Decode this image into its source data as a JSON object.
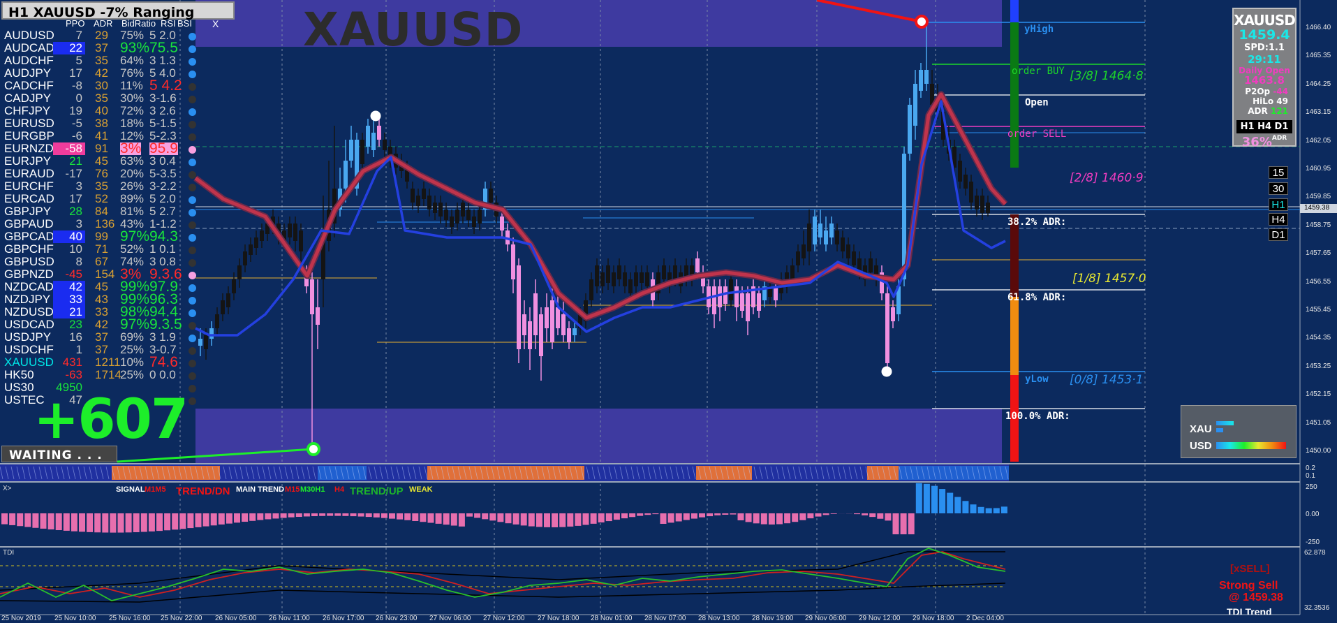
{
  "window": {
    "title": "H1 XAUUSD  -7% Ranging",
    "symbol_watermark": "XAUUSD"
  },
  "pairs_table": {
    "headers": [
      "PPO",
      "ADR",
      "BidRatio",
      "RSI",
      "BSI"
    ],
    "close_label": "X",
    "rows": [
      {
        "name": "AUDUSD",
        "ppo": "7",
        "adr": "29",
        "ratio": "75%",
        "rsi": "5 2.0",
        "dot": "#2a8ff0"
      },
      {
        "name": "AUDCAD",
        "ppo": "22",
        "adr": "37",
        "ratio": "93%",
        "rsi": "75.5",
        "dot": "#2a8ff0",
        "ppo_bg": "#1a2cf0",
        "ratio_color": "#19e43c",
        "rsi_color": "#19e43c"
      },
      {
        "name": "AUDCHF",
        "ppo": "5",
        "adr": "35",
        "ratio": "64%",
        "rsi": "3 1.3",
        "dot": "#2a8ff0"
      },
      {
        "name": "AUDJPY",
        "ppo": "17",
        "adr": "42",
        "ratio": "76%",
        "rsi": "5 4.0",
        "dot": "#2a8ff0"
      },
      {
        "name": "CADCHF",
        "ppo": "-8",
        "adr": "30",
        "ratio": "11%",
        "rsi": "5 4.2",
        "dot": "#333",
        "rsi_color": "#ff2a2a"
      },
      {
        "name": "CADJPY",
        "ppo": "0",
        "adr": "35",
        "ratio": "30%",
        "rsi": "3-1.6",
        "dot": "#333"
      },
      {
        "name": "CHFJPY",
        "ppo": "19",
        "adr": "40",
        "ratio": "72%",
        "rsi": "3 2.6",
        "dot": "#2a8ff0"
      },
      {
        "name": "EURUSD",
        "ppo": "-5",
        "adr": "38",
        "ratio": "18%",
        "rsi": "5-1.5",
        "dot": "#333"
      },
      {
        "name": "EURGBP",
        "ppo": "-6",
        "adr": "41",
        "ratio": "12%",
        "rsi": "5-2.3",
        "dot": "#333"
      },
      {
        "name": "EURNZD",
        "ppo": "-58",
        "adr": "91",
        "ratio": "3%",
        "rsi": "95.9",
        "dot": "#f7a0e0",
        "ppo_bg": "#f03c9c",
        "ratio_color": "#ff2a2a",
        "rsi_color": "#ff2a2a",
        "ratio_bg": "#f7a0e0",
        "rsi_bg": "#f7a0e0"
      },
      {
        "name": "EURJPY",
        "ppo": "21",
        "adr": "45",
        "ratio": "63%",
        "rsi": "3 0.4",
        "dot": "#2a8ff0",
        "ppo_color": "#19e43c"
      },
      {
        "name": "EURAUD",
        "ppo": "-17",
        "adr": "76",
        "ratio": "20%",
        "rsi": "5-3.5",
        "dot": "#333"
      },
      {
        "name": "EURCHF",
        "ppo": "3",
        "adr": "35",
        "ratio": "26%",
        "rsi": "3-2.2",
        "dot": "#333"
      },
      {
        "name": "EURCAD",
        "ppo": "17",
        "adr": "52",
        "ratio": "89%",
        "rsi": "5 2.0",
        "dot": "#2a8ff0"
      },
      {
        "name": "GBPJPY",
        "ppo": "28",
        "adr": "84",
        "ratio": "81%",
        "rsi": "5 2.7",
        "dot": "#2a8ff0",
        "ppo_color": "#19e43c"
      },
      {
        "name": "GBPAUD",
        "ppo": "3",
        "adr": "136",
        "ratio": "43%",
        "rsi": "1-1.2",
        "dot": "#333"
      },
      {
        "name": "GBPCAD",
        "ppo": "40",
        "adr": "99",
        "ratio": "97%",
        "rsi": "94.3",
        "dot": "#2a8ff0",
        "ppo_bg": "#1a2cf0",
        "ratio_color": "#19e43c",
        "rsi_color": "#19e43c"
      },
      {
        "name": "GBPCHF",
        "ppo": "10",
        "adr": "71",
        "ratio": "52%",
        "rsi": "1 0.1",
        "dot": "#333"
      },
      {
        "name": "GBPUSD",
        "ppo": "8",
        "adr": "67",
        "ratio": "74%",
        "rsi": "3 0.8",
        "dot": "#333"
      },
      {
        "name": "GBPNZD",
        "ppo": "-45",
        "adr": "154",
        "ratio": "3%",
        "rsi": "9.3.6",
        "dot": "#f7a0e0",
        "ppo_color": "#ff2a2a",
        "ratio_color": "#ff2a2a",
        "rsi_color": "#ff2a2a"
      },
      {
        "name": "NZDCAD",
        "ppo": "42",
        "adr": "45",
        "ratio": "99%",
        "rsi": "97.9",
        "dot": "#2a8ff0",
        "ppo_bg": "#1a2cf0",
        "ratio_color": "#19e43c",
        "rsi_color": "#19e43c"
      },
      {
        "name": "NZDJPY",
        "ppo": "33",
        "adr": "43",
        "ratio": "99%",
        "rsi": "96.3",
        "dot": "#2a8ff0",
        "ppo_bg": "#1a2cf0",
        "ratio_color": "#19e43c",
        "rsi_color": "#19e43c"
      },
      {
        "name": "NZDUSD",
        "ppo": "21",
        "adr": "33",
        "ratio": "98%",
        "rsi": "94.4",
        "dot": "#2a8ff0",
        "ppo_bg": "#1a2cf0",
        "ratio_color": "#19e43c",
        "rsi_color": "#19e43c"
      },
      {
        "name": "USDCAD",
        "ppo": "23",
        "adr": "42",
        "ratio": "97%",
        "rsi": "9.3.5",
        "dot": "#333",
        "ppo_color": "#19e43c",
        "ratio_color": "#19e43c",
        "rsi_color": "#19e43c"
      },
      {
        "name": "USDJPY",
        "ppo": "16",
        "adr": "37",
        "ratio": "69%",
        "rsi": "3 1.9",
        "dot": "#2a8ff0"
      },
      {
        "name": "USDCHF",
        "ppo": "1",
        "adr": "37",
        "ratio": "25%",
        "rsi": "3-0.7",
        "dot": "#333"
      },
      {
        "name": "XAUUSD",
        "ppo": "431",
        "adr": "1211",
        "ratio": "10%",
        "rsi": "74.6",
        "dot": "#333",
        "name_color": "#00e6e6",
        "ppo_color": "#ff2a2a",
        "rsi_color": "#ff2a2a"
      },
      {
        "name": "HK50",
        "ppo": "-63",
        "adr": "1714",
        "ratio": "25%",
        "rsi": "0 0.0",
        "dot": "#333",
        "ppo_color": "#ff2a2a"
      },
      {
        "name": "US30",
        "ppo": "4950",
        "adr": "",
        "ratio": "",
        "rsi": "",
        "dot": "#333",
        "ppo_color": "#19e43c"
      },
      {
        "name": "USTEC",
        "ppo": "47",
        "adr": "",
        "ratio": "",
        "rsi": "",
        "dot": "#333"
      }
    ]
  },
  "profit": "+607",
  "status": "WAITING . . .",
  "levels": {
    "yhigh": "yHigh",
    "order_buy": "order BUY",
    "open": "Open",
    "order_sell": "order SELL",
    "adr_382": "38.2% ADR:",
    "adr_618": "61.8% ADR:",
    "ylow": "yLow",
    "adr_100": "100.0% ADR:",
    "murrey_38": "[3/8]  1464·8",
    "murrey_28": "[2/8]  1460·9",
    "murrey_18": "[1/8]  1457·0",
    "murrey_08": "[0/8]  1453·1"
  },
  "info_panel": {
    "symbol": "XAUUSD",
    "price": "1459.4",
    "spread": "SPD:1.1",
    "timer": "29:11",
    "daily_open_label": "Daily Open",
    "daily_open": "1463.8",
    "p2o_label": "P2Op",
    "p2o": "-44",
    "hilo_label": "HiLo",
    "hilo": "49",
    "adr_label": "ADR",
    "adr": "121",
    "tf_buttons": "H1 H4 D1",
    "percent": "36%",
    "percent_label": "ADR"
  },
  "timeframes": [
    "15",
    "30",
    "H1",
    "H4",
    "D1"
  ],
  "strength": {
    "xau": "XAU",
    "usd": "USD",
    "xau_level": 0.25,
    "usd_level": 1.0
  },
  "indicator1": {
    "label_x": "X>",
    "signal": "SIGNAL",
    "m1m5": "M1M5",
    "trend_dn": "TREND/DN",
    "main_trend": "MAIN TREND",
    "m15": "M15",
    "m30h1": "M30H1",
    "h4": "H4",
    "trend_up": "TREND/UP",
    "weak": "WEAK"
  },
  "indicator2": {
    "label": "TDI",
    "sell_label": "[xSELL]",
    "strong_sell": "Strong Sell",
    "at_price": "@ 1459.38",
    "tdi_trend": "TDI Trend"
  },
  "price_axis": {
    "ticks": [
      "1466.40",
      "1465.35",
      "1464.25",
      "1463.15",
      "1462.05",
      "1460.95",
      "1459.85",
      "1458.75",
      "1457.65",
      "1456.55",
      "1455.45",
      "1454.35",
      "1453.25",
      "1452.15",
      "1451.05",
      "1450.00"
    ],
    "current_price": "1459.38",
    "ind1_ticks": [
      "0.2",
      "0.1",
      "250",
      "0.00",
      "-250"
    ],
    "ind2_ticks": [
      "62.878",
      "32.3536"
    ]
  },
  "time_axis": [
    "25 Nov 2019",
    "25 Nov 10:00",
    "25 Nov 16:00",
    "25 Nov 22:00",
    "26 Nov 05:00",
    "26 Nov 11:00",
    "26 Nov 17:00",
    "26 Nov 23:00",
    "27 Nov 06:00",
    "27 Nov 12:00",
    "27 Nov 18:00",
    "28 Nov 01:00",
    "28 Nov 07:00",
    "28 Nov 13:00",
    "28 Nov 19:00",
    "29 Nov 06:00",
    "29 Nov 12:00",
    "29 Nov 18:00",
    "2 Dec 04:00"
  ],
  "colors": {
    "background": "#0c2a5e",
    "zone": "#3e3aa0",
    "bull_candle": "#4aa8f0",
    "bear_candle": "#f090e0",
    "neutral_candle": "#141414",
    "ma_red": "#c0344c",
    "ma_blue": "#2440e0"
  }
}
